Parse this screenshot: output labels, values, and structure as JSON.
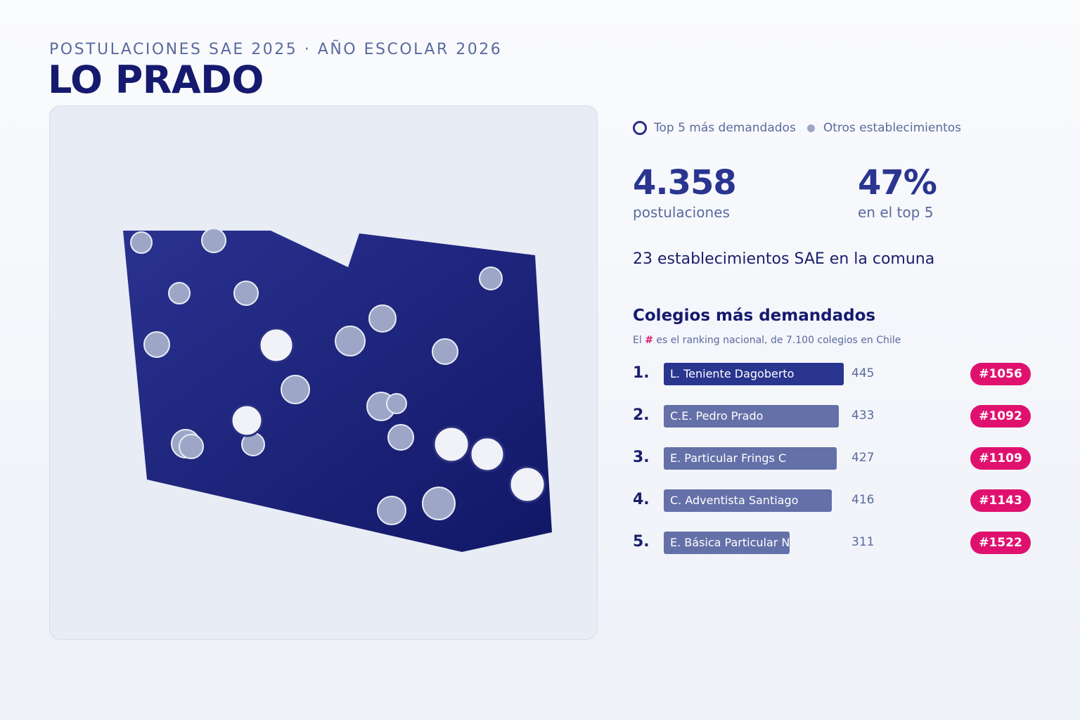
{
  "header": {
    "subtitle": "POSTULACIONES SAE 2025 · AÑO ESCOLAR 2026",
    "title": "LO PRADO"
  },
  "legend": {
    "top5_label": "Top 5 más demandados",
    "others_label": "Otros establecimientos"
  },
  "stats": {
    "applications_value": "4.358",
    "applications_label": "postulaciones",
    "top5_share_value": "47%",
    "top5_share_label": "en el top 5"
  },
  "schools_count_text": "23 establecimientos SAE en la comuna",
  "ranking": {
    "title": "Colegios más demandados",
    "note_prefix": "El ",
    "note_hash": "#",
    "note_suffix": " es el ranking nacional, de 7.100 colegios en Chile",
    "items": [
      {
        "rank": "1.",
        "name": "L. Teniente Dagoberto",
        "applications": 445,
        "applications_text": "445",
        "national_rank": "#1056"
      },
      {
        "rank": "2.",
        "name": "C.E. Pedro Prado",
        "applications": 433,
        "applications_text": "433",
        "national_rank": "#1092"
      },
      {
        "rank": "3.",
        "name": "E. Particular Frings C",
        "applications": 427,
        "applications_text": "427",
        "national_rank": "#1109"
      },
      {
        "rank": "4.",
        "name": "C. Adventista Santiago",
        "applications": 416,
        "applications_text": "416",
        "national_rank": "#1143"
      },
      {
        "rank": "5.",
        "name": "E. Básica Particular N",
        "applications": 311,
        "applications_text": "311",
        "national_rank": "#1522"
      }
    ]
  },
  "colors": {
    "commune_fill_start": "#2a3290",
    "commune_fill_end": "#111766",
    "top5_marker": "#f0f2f8",
    "other_marker": "#9ea6c8",
    "badge": "#e0116e",
    "bar_top": "#2a3590",
    "bar_other": "#6470a8"
  }
}
